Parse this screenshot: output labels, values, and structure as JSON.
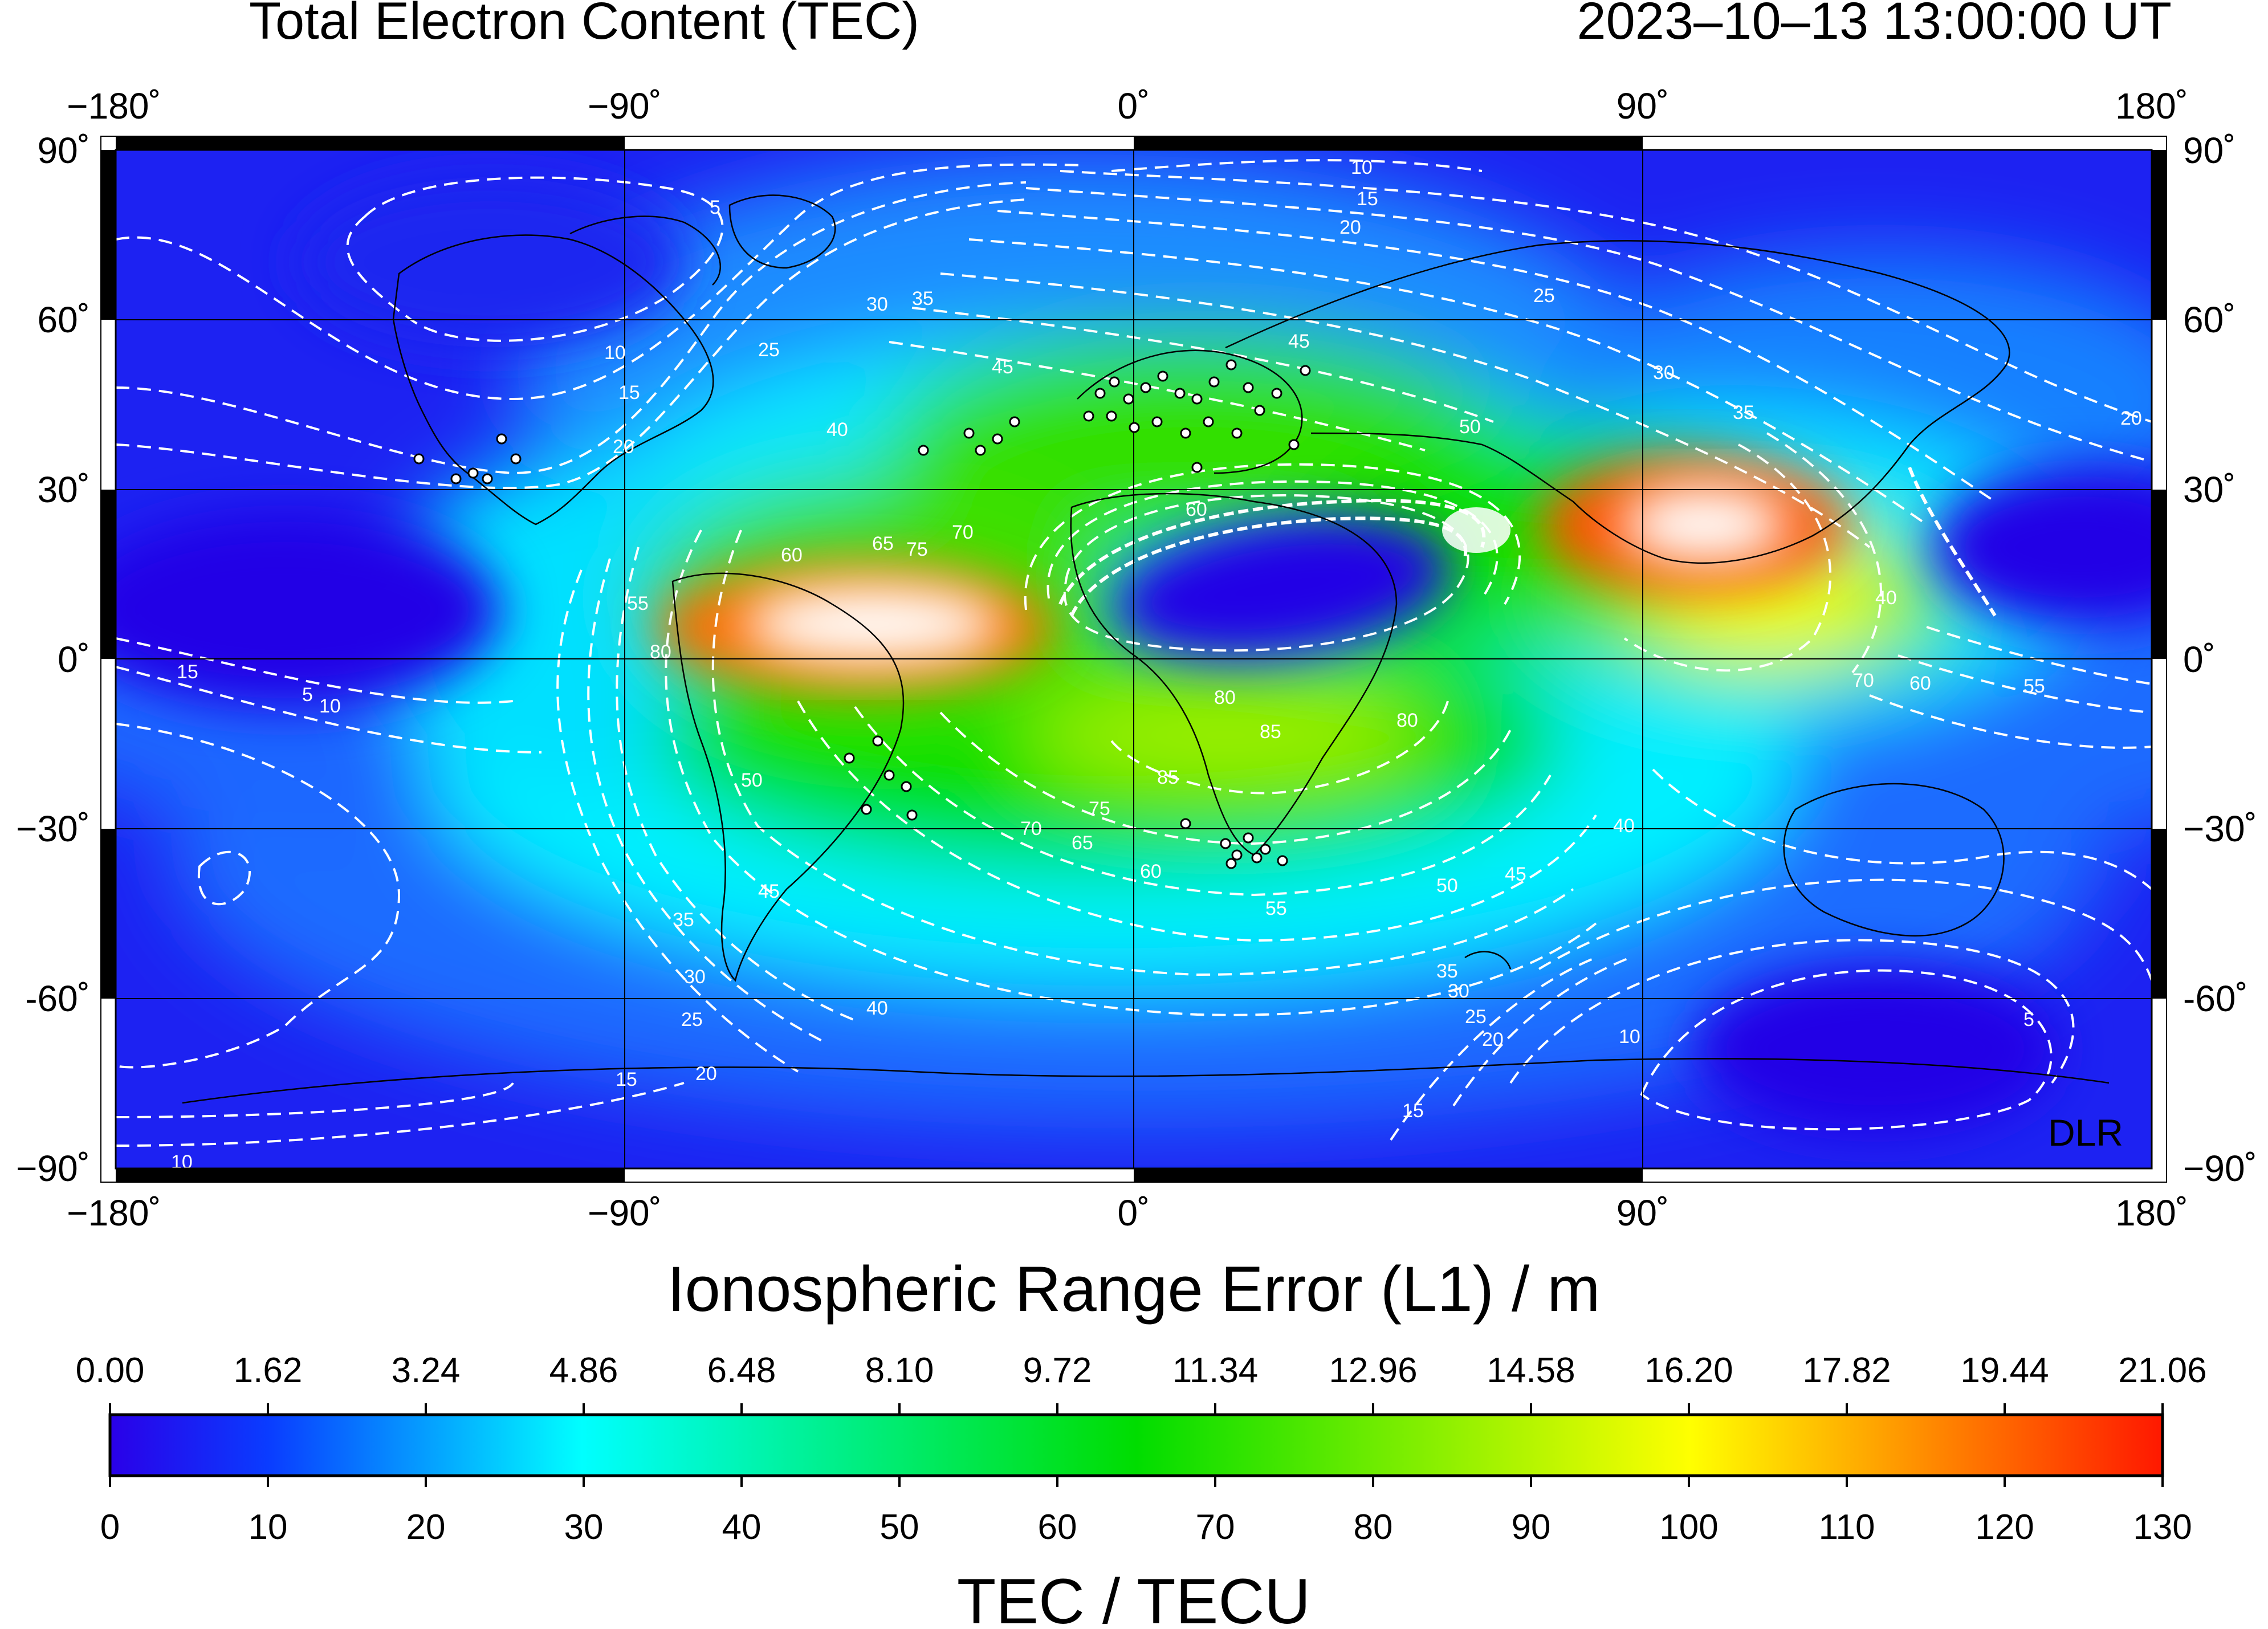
{
  "header": {
    "title": "Total Electron Content (TEC)",
    "datetime": "2023–10–13  13:00:00 UT"
  },
  "map": {
    "lon_ticks": [
      "−180˚",
      "−90˚",
      "0˚",
      "90˚",
      "180˚"
    ],
    "lat_ticks": [
      "90˚",
      "60˚",
      "30˚",
      "0˚",
      "−30˚",
      "-60˚",
      "−90˚"
    ],
    "watermark": "DLR",
    "contour_levels": [
      "5",
      "10",
      "15",
      "20",
      "25",
      "30",
      "35",
      "40",
      "45",
      "50",
      "55",
      "60",
      "65",
      "70",
      "75",
      "80",
      "85"
    ]
  },
  "range_error_scale": {
    "title": "Ionospheric Range Error (L1) / m",
    "ticks": [
      "0.00",
      "1.62",
      "3.24",
      "4.86",
      "6.48",
      "8.10",
      "9.72",
      "11.34",
      "12.96",
      "14.58",
      "16.20",
      "17.82",
      "19.44",
      "21.06"
    ]
  },
  "tec_scale": {
    "title": "TEC / TECU",
    "ticks": [
      "0",
      "10",
      "20",
      "30",
      "40",
      "50",
      "60",
      "70",
      "80",
      "90",
      "100",
      "110",
      "120",
      "130"
    ]
  },
  "colors": {
    "stops": [
      "#2a00e8",
      "#0a5cff",
      "#00ffff",
      "#00e000",
      "#ffff00",
      "#ff0000"
    ],
    "contour": "#ffffff",
    "station": "#ffffff"
  }
}
